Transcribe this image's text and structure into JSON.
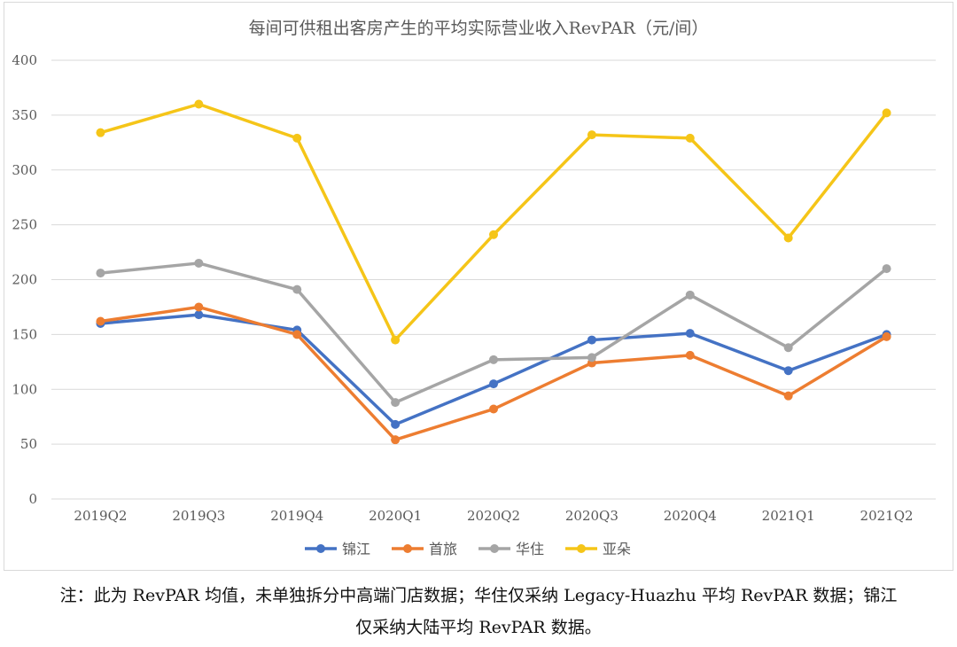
{
  "chart_data": {
    "type": "line",
    "title": "每间可供租出客房产生的平均实际营业收入RevPAR（元/间）",
    "categories": [
      "2019Q2",
      "2019Q3",
      "2019Q4",
      "2020Q1",
      "2020Q2",
      "2020Q3",
      "2020Q4",
      "2021Q1",
      "2021Q2"
    ],
    "ylim": [
      0,
      400
    ],
    "yticks": [
      0,
      50,
      100,
      150,
      200,
      250,
      300,
      350,
      400
    ],
    "grid": true,
    "legend_position": "bottom",
    "series": [
      {
        "name": "锦江",
        "color": "#4472c4",
        "values": [
          160,
          168,
          154,
          68,
          105,
          145,
          151,
          117,
          150
        ]
      },
      {
        "name": "首旅",
        "color": "#ed7d31",
        "values": [
          162,
          175,
          150,
          54,
          82,
          124,
          131,
          94,
          148
        ]
      },
      {
        "name": "华住",
        "color": "#a5a5a5",
        "values": [
          206,
          215,
          191,
          88,
          127,
          129,
          186,
          138,
          210
        ]
      },
      {
        "name": "亚朵",
        "color": "#f5c518",
        "values": [
          334,
          360,
          329,
          145,
          241,
          332,
          329,
          238,
          352
        ]
      }
    ]
  },
  "note": {
    "line1": "注：此为 RevPAR 均值，未单独拆分中高端门店数据；华住仅采纳 Legacy-Huazhu 平均 RevPAR 数据；锦江",
    "line2": "仅采纳大陆平均 RevPAR 数据。"
  }
}
